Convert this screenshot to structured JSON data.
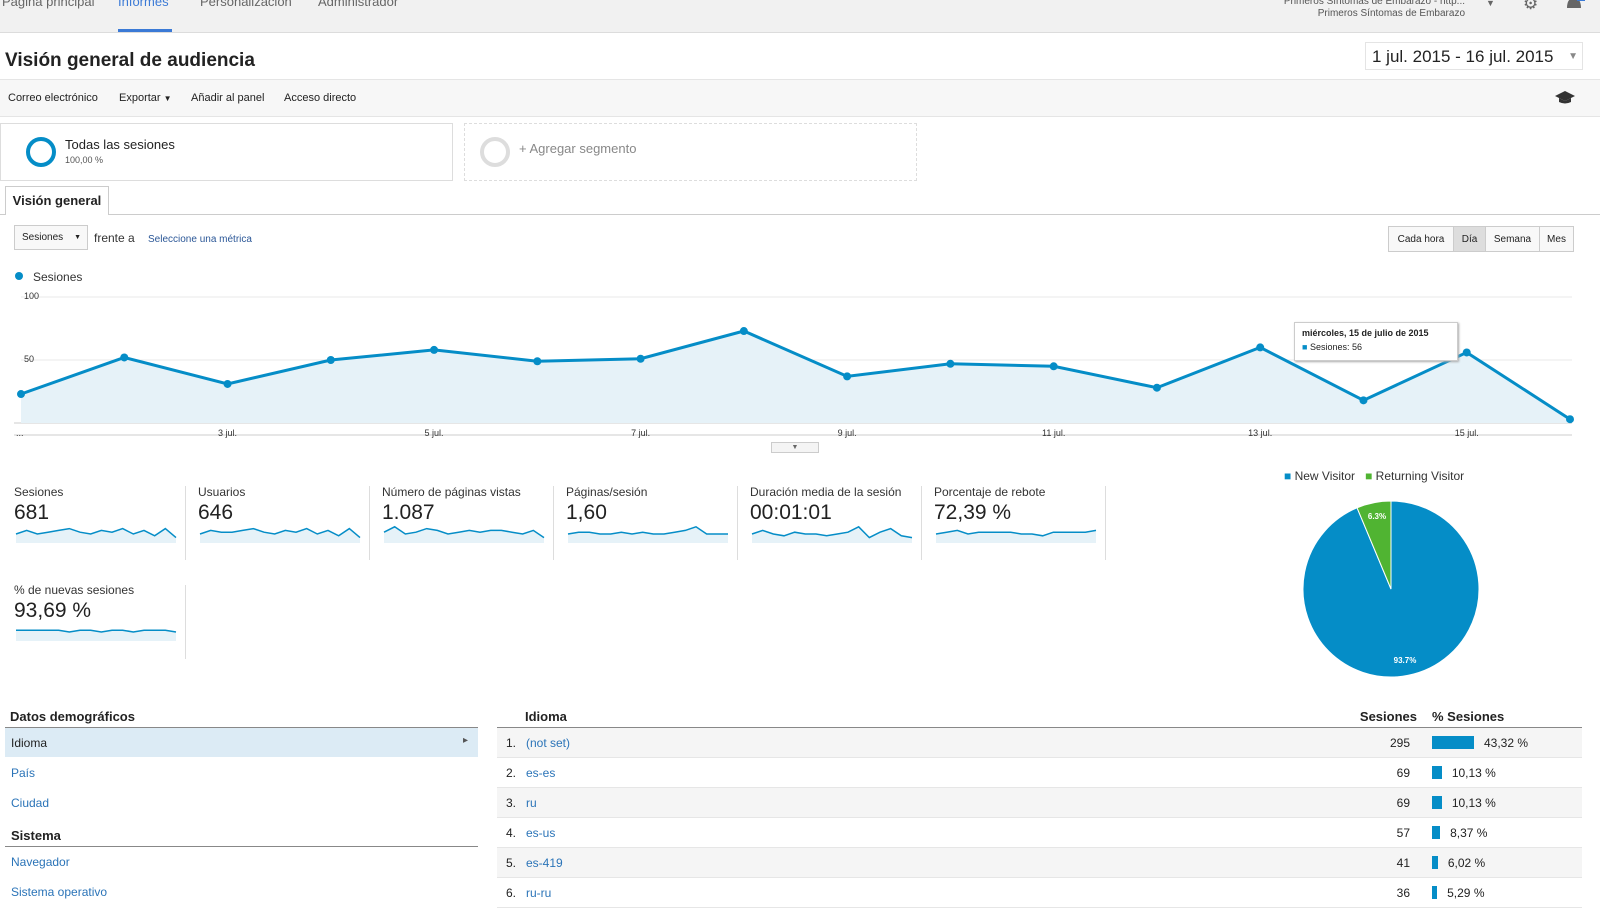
{
  "nav": {
    "tabs": [
      "Página principal",
      "Informes",
      "Personalización",
      "Administrador"
    ],
    "account_line1": "Primeros Síntomas de Embarazo - http...",
    "account_line2": "Primeros Síntomas de Embarazo"
  },
  "header": {
    "title": "Visión general de audiencia",
    "date_range": "1 jul. 2015 - 16 jul. 2015"
  },
  "actions": [
    "Correo electrónico",
    "Exportar",
    "Añadir al panel",
    "Acceso directo"
  ],
  "segments": {
    "active_name": "Todas las sesiones",
    "active_pct": "100,00 %",
    "add_label": "+ Agregar segmento"
  },
  "tab": "Visión general",
  "controls": {
    "metric_select": "Sesiones",
    "vs_text": "frente a",
    "select_metric_link": "Seleccione una métrica",
    "granularity": [
      "Cada hora",
      "Día",
      "Semana",
      "Mes"
    ],
    "selected_granularity": "Día"
  },
  "chart_data": {
    "type": "line",
    "title": "",
    "legend": "Sesiones",
    "x": [
      "1 jul.",
      "2 jul.",
      "3 jul.",
      "4 jul.",
      "5 jul.",
      "6 jul.",
      "7 jul.",
      "8 jul.",
      "9 jul.",
      "10 jul.",
      "11 jul.",
      "12 jul.",
      "13 jul.",
      "14 jul.",
      "15 jul.",
      "16 jul."
    ],
    "values": [
      23,
      52,
      31,
      50,
      58,
      49,
      51,
      73,
      37,
      47,
      45,
      28,
      60,
      18,
      56,
      3
    ],
    "ylim": [
      0,
      100
    ],
    "y_ticks": [
      "100",
      "50"
    ],
    "x_tick_labels": [
      "...",
      "3 jul.",
      "5 jul.",
      "7 jul.",
      "9 jul.",
      "11 jul.",
      "13 jul.",
      "15 jul."
    ],
    "tooltip_date": "miércoles, 15 de julio de 2015",
    "tooltip_value": "Sesiones: 56",
    "color": "#058dc7"
  },
  "metrics": [
    {
      "label": "Sesiones",
      "value": "681",
      "spark": [
        5,
        7,
        5,
        6,
        7,
        8,
        6,
        5,
        7,
        6,
        8,
        5,
        7,
        4,
        8,
        3
      ]
    },
    {
      "label": "Usuarios",
      "value": "646",
      "spark": [
        5,
        7,
        6,
        6,
        7,
        8,
        6,
        5,
        7,
        6,
        8,
        5,
        7,
        4,
        8,
        3
      ]
    },
    {
      "label": "Número de páginas vistas",
      "value": "1.087",
      "spark": [
        6,
        9,
        5,
        6,
        8,
        7,
        5,
        6,
        7,
        6,
        7,
        7,
        6,
        5,
        7,
        3
      ]
    },
    {
      "label": "Páginas/sesión",
      "value": "1,60",
      "spark": [
        5,
        6,
        6,
        5,
        5,
        6,
        5,
        6,
        5,
        5,
        6,
        7,
        9,
        5,
        5,
        5
      ]
    },
    {
      "label": "Duración media de la sesión",
      "value": "00:01:01",
      "spark": [
        5,
        7,
        5,
        4,
        6,
        5,
        5,
        4,
        5,
        6,
        9,
        3,
        6,
        8,
        4,
        3
      ]
    },
    {
      "label": "Porcentaje de rebote",
      "value": "72,39 %",
      "spark": [
        5,
        6,
        7,
        5,
        6,
        6,
        6,
        6,
        5,
        5,
        4,
        6,
        6,
        6,
        6,
        7
      ]
    },
    {
      "label": "% de nuevas sesiones",
      "value": "93,69 %",
      "spark": [
        6,
        6,
        6,
        6,
        6,
        5,
        6,
        6,
        5,
        6,
        6,
        5,
        6,
        6,
        6,
        5
      ]
    }
  ],
  "pie": {
    "legend": [
      "New Visitor",
      "Returning Visitor"
    ],
    "slices": [
      {
        "name": "New Visitor",
        "value": 93.7,
        "label": "93.7%",
        "color": "#058dc7"
      },
      {
        "name": "Returning Visitor",
        "value": 6.3,
        "label": "6.3%",
        "color": "#50b432"
      }
    ]
  },
  "demographics": {
    "section1": "Datos demográficos",
    "items1": [
      "Idioma",
      "País",
      "Ciudad"
    ],
    "selected": "Idioma",
    "section2": "Sistema",
    "items2": [
      "Navegador",
      "Sistema operativo"
    ]
  },
  "table": {
    "col_lang": "Idioma",
    "col_sessions": "Sesiones",
    "col_pct": "% Sesiones",
    "rows": [
      {
        "num": "1.",
        "lang": "(not set)",
        "sessions": "295",
        "pct_text": "43,32 %",
        "pct": 43.32
      },
      {
        "num": "2.",
        "lang": "es-es",
        "sessions": "69",
        "pct_text": "10,13 %",
        "pct": 10.13
      },
      {
        "num": "3.",
        "lang": "ru",
        "sessions": "69",
        "pct_text": "10,13 %",
        "pct": 10.13
      },
      {
        "num": "4.",
        "lang": "es-us",
        "sessions": "57",
        "pct_text": "8,37 %",
        "pct": 8.37
      },
      {
        "num": "5.",
        "lang": "es-419",
        "sessions": "41",
        "pct_text": "6,02 %",
        "pct": 6.02
      },
      {
        "num": "6.",
        "lang": "ru-ru",
        "sessions": "36",
        "pct_text": "5,29 %",
        "pct": 5.29
      }
    ]
  }
}
